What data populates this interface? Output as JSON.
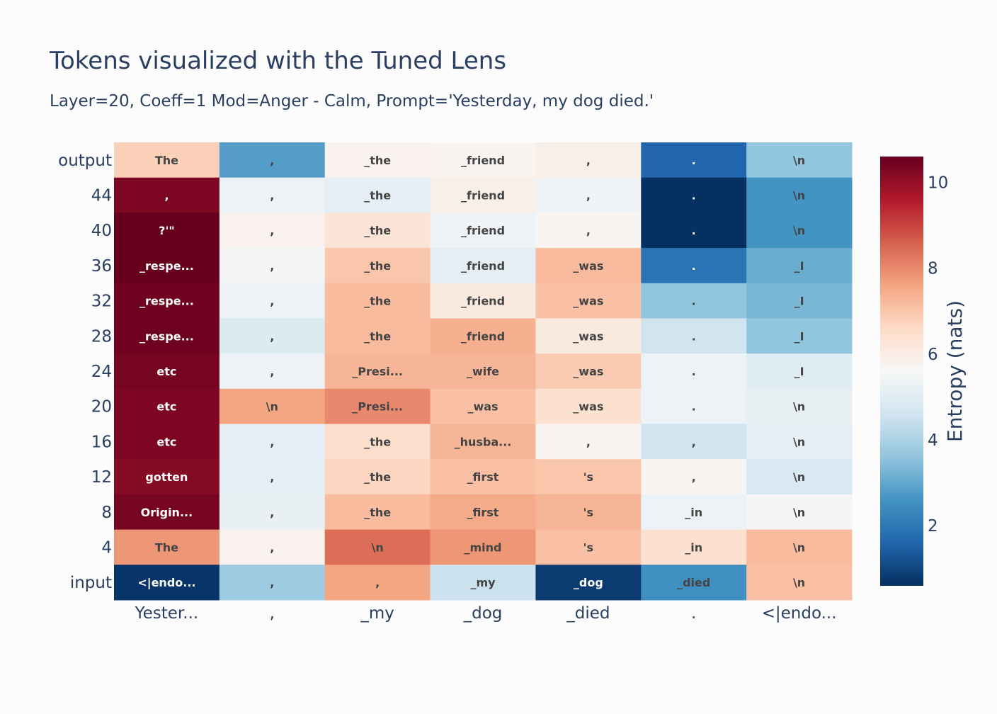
{
  "chart_data": {
    "type": "heatmap",
    "title": "Tokens visualized with the Tuned Lens",
    "subtitle": "Layer=20, Coeff=1 Mod=Anger - Calm, Prompt='Yesterday, my dog died.'",
    "x_tick_labels": [
      "Yester...",
      ",",
      "_my",
      "_dog",
      "_died",
      ".",
      "<|endo..."
    ],
    "y_tick_labels": [
      "output",
      "44",
      "40",
      "36",
      "32",
      "28",
      "24",
      "20",
      "16",
      "12",
      "8",
      "4",
      "input"
    ],
    "cell_tokens": [
      [
        "The",
        ",",
        "_the",
        "_friend",
        ",",
        ".",
        "\\n"
      ],
      [
        ",",
        ",",
        "_the",
        "_friend",
        ",",
        ".",
        "\\n"
      ],
      [
        "?'\"",
        ",",
        "_the",
        "_friend",
        ",",
        ".",
        "\\n"
      ],
      [
        "_respe...",
        ",",
        "_the",
        "_friend",
        "_was",
        ".",
        "_I"
      ],
      [
        "_respe...",
        ",",
        "_the",
        "_friend",
        "_was",
        ".",
        "_I"
      ],
      [
        "_respe...",
        ",",
        "_the",
        "_friend",
        "_was",
        ".",
        "_I"
      ],
      [
        "etc",
        ",",
        "_Presi...",
        "_wife",
        "_was",
        ".",
        "_I"
      ],
      [
        "etc",
        "\\n",
        "_Presi...",
        "_was",
        "_was",
        ".",
        "\\n"
      ],
      [
        "etc",
        ",",
        "_the",
        "_husba...",
        ",",
        ",",
        "\\n"
      ],
      [
        "gotten",
        ",",
        "_the",
        "_first",
        "'s",
        ",",
        "\\n"
      ],
      [
        "Origin...",
        ",",
        "_the",
        "_first",
        "'s",
        "_in",
        "\\n"
      ],
      [
        "The",
        ",",
        "\\n",
        "_mind",
        "'s",
        "_in",
        "\\n"
      ],
      [
        "<|endo...",
        ",",
        ",",
        "_my",
        "_dog",
        "_died",
        "\\n"
      ]
    ],
    "entropy": [
      [
        6.8,
        2.8,
        5.8,
        5.7,
        5.9,
        1.6,
        3.6
      ],
      [
        10.3,
        5.3,
        5.1,
        5.9,
        5.4,
        0.6,
        2.6
      ],
      [
        10.6,
        5.8,
        6.3,
        5.4,
        5.7,
        0.5,
        2.6
      ],
      [
        10.6,
        5.5,
        7.0,
        5.1,
        7.2,
        1.9,
        3.1
      ],
      [
        10.5,
        5.3,
        7.2,
        6.1,
        7.1,
        3.6,
        3.3
      ],
      [
        10.5,
        4.9,
        7.2,
        7.4,
        6.1,
        4.6,
        3.6
      ],
      [
        10.4,
        5.3,
        7.3,
        7.3,
        6.9,
        5.3,
        5.0
      ],
      [
        10.3,
        7.6,
        8.0,
        7.1,
        6.4,
        5.3,
        5.2
      ],
      [
        10.3,
        5.1,
        6.5,
        7.3,
        5.7,
        4.6,
        5.1
      ],
      [
        10.2,
        5.1,
        6.7,
        7.1,
        7.0,
        5.7,
        4.8
      ],
      [
        10.4,
        5.2,
        7.2,
        7.5,
        7.3,
        5.3,
        5.5
      ],
      [
        7.8,
        5.8,
        8.4,
        7.8,
        7.1,
        6.4,
        7.2
      ],
      [
        0.7,
        3.8,
        7.6,
        4.5,
        0.8,
        2.5,
        7.1
      ]
    ],
    "zmin": 0.6,
    "zmax": 10.6,
    "colorscale": [
      "#053061",
      "#2166ac",
      "#4393c3",
      "#92c5de",
      "#d1e5f0",
      "#f7f7f7",
      "#fddbc7",
      "#f4a582",
      "#d6604d",
      "#b2182b",
      "#67001f"
    ],
    "colorbar": {
      "title": "Entropy (nats)",
      "ticks": [
        2,
        4,
        6,
        8,
        10
      ]
    }
  }
}
